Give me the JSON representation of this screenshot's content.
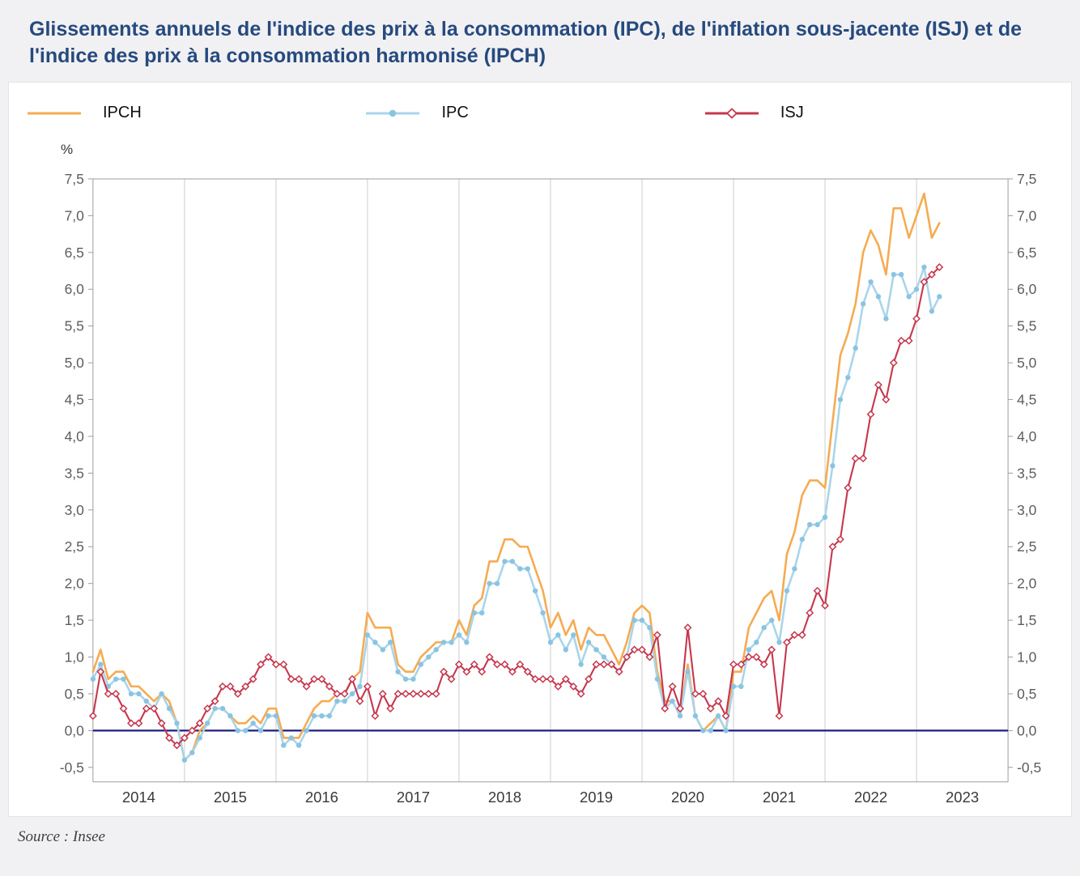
{
  "page": {
    "title": "Glissements annuels de l'indice des prix à la consommation (IPC), de l'inflation sous-jacente (ISJ) et de l'indice des prix à la consommation harmonisé (IPCH)",
    "percent_label": "%",
    "source": "Source : Insee"
  },
  "chart_data": {
    "type": "line",
    "title": "Glissements annuels de l'indice des prix à la consommation (IPC), de l'inflation sous-jacente (ISJ) et de l'indice des prix à la consommation harmonisé (IPCH)",
    "x_start": "2014-01",
    "x_end": "2023-04",
    "x_tick_labels": [
      "2014",
      "2015",
      "2016",
      "2017",
      "2018",
      "2019",
      "2020",
      "2021",
      "2022",
      "2023"
    ],
    "ylabel": "%",
    "ylim": [
      -0.5,
      7.5
    ],
    "y_tick_step": 0.5,
    "grid": "vertical-only",
    "legend_position": "top",
    "zero_line_color": "#1e1e82",
    "series": [
      {
        "name": "IPCH",
        "color": "#f5ab52",
        "marker": "none",
        "values": [
          0.8,
          1.1,
          0.7,
          0.8,
          0.8,
          0.6,
          0.6,
          0.5,
          0.4,
          0.5,
          0.4,
          0.1,
          -0.4,
          -0.3,
          0.0,
          0.1,
          0.3,
          0.3,
          0.2,
          0.1,
          0.1,
          0.2,
          0.1,
          0.3,
          0.3,
          -0.1,
          -0.1,
          -0.1,
          0.1,
          0.3,
          0.4,
          0.4,
          0.5,
          0.5,
          0.7,
          0.8,
          1.6,
          1.4,
          1.4,
          1.4,
          0.9,
          0.8,
          0.8,
          1.0,
          1.1,
          1.2,
          1.2,
          1.2,
          1.5,
          1.3,
          1.7,
          1.8,
          2.3,
          2.3,
          2.6,
          2.6,
          2.5,
          2.5,
          2.2,
          1.9,
          1.4,
          1.6,
          1.3,
          1.5,
          1.1,
          1.4,
          1.3,
          1.3,
          1.1,
          0.9,
          1.2,
          1.6,
          1.7,
          1.6,
          0.8,
          0.4,
          0.4,
          0.2,
          0.9,
          0.2,
          0.0,
          0.1,
          0.2,
          0.0,
          0.8,
          0.8,
          1.4,
          1.6,
          1.8,
          1.9,
          1.5,
          2.4,
          2.7,
          3.2,
          3.4,
          3.4,
          3.3,
          4.2,
          5.1,
          5.4,
          5.8,
          6.5,
          6.8,
          6.6,
          6.2,
          7.1,
          7.1,
          6.7,
          7.0,
          7.3,
          6.7,
          6.9
        ]
      },
      {
        "name": "IPC",
        "color": "#a9d5ea",
        "marker": "circle",
        "marker_color": "#8ac4e2",
        "values": [
          0.7,
          0.9,
          0.6,
          0.7,
          0.7,
          0.5,
          0.5,
          0.4,
          0.3,
          0.5,
          0.3,
          0.1,
          -0.4,
          -0.3,
          -0.1,
          0.1,
          0.3,
          0.3,
          0.2,
          0.0,
          0.0,
          0.1,
          0.0,
          0.2,
          0.2,
          -0.2,
          -0.1,
          -0.2,
          0.0,
          0.2,
          0.2,
          0.2,
          0.4,
          0.4,
          0.5,
          0.6,
          1.3,
          1.2,
          1.1,
          1.2,
          0.8,
          0.7,
          0.7,
          0.9,
          1.0,
          1.1,
          1.2,
          1.2,
          1.3,
          1.2,
          1.6,
          1.6,
          2.0,
          2.0,
          2.3,
          2.3,
          2.2,
          2.2,
          1.9,
          1.6,
          1.2,
          1.3,
          1.1,
          1.3,
          0.9,
          1.2,
          1.1,
          1.0,
          0.9,
          0.8,
          1.0,
          1.5,
          1.5,
          1.4,
          0.7,
          0.3,
          0.4,
          0.2,
          0.8,
          0.2,
          0.0,
          0.0,
          0.2,
          0.0,
          0.6,
          0.6,
          1.1,
          1.2,
          1.4,
          1.5,
          1.2,
          1.9,
          2.2,
          2.6,
          2.8,
          2.8,
          2.9,
          3.6,
          4.5,
          4.8,
          5.2,
          5.8,
          6.1,
          5.9,
          5.6,
          6.2,
          6.2,
          5.9,
          6.0,
          6.3,
          5.7,
          5.9
        ]
      },
      {
        "name": "ISJ",
        "color": "#c6374e",
        "marker": "diamond",
        "marker_color": "#ffffff",
        "values": [
          0.2,
          0.8,
          0.5,
          0.5,
          0.3,
          0.1,
          0.1,
          0.3,
          0.3,
          0.1,
          -0.1,
          -0.2,
          -0.1,
          0.0,
          0.1,
          0.3,
          0.4,
          0.6,
          0.6,
          0.5,
          0.6,
          0.7,
          0.9,
          1.0,
          0.9,
          0.9,
          0.7,
          0.7,
          0.6,
          0.7,
          0.7,
          0.6,
          0.5,
          0.5,
          0.7,
          0.4,
          0.6,
          0.2,
          0.5,
          0.3,
          0.5,
          0.5,
          0.5,
          0.5,
          0.5,
          0.5,
          0.8,
          0.7,
          0.9,
          0.8,
          0.9,
          0.8,
          1.0,
          0.9,
          0.9,
          0.8,
          0.9,
          0.8,
          0.7,
          0.7,
          0.7,
          0.6,
          0.7,
          0.6,
          0.5,
          0.7,
          0.9,
          0.9,
          0.9,
          0.8,
          1.0,
          1.1,
          1.1,
          1.0,
          1.3,
          0.3,
          0.6,
          0.3,
          1.4,
          0.5,
          0.5,
          0.3,
          0.4,
          0.2,
          0.9,
          0.9,
          1.0,
          1.0,
          0.9,
          1.1,
          0.2,
          1.2,
          1.3,
          1.3,
          1.6,
          1.9,
          1.7,
          2.5,
          2.6,
          3.3,
          3.7,
          3.7,
          4.3,
          4.7,
          4.5,
          5.0,
          5.3,
          5.3,
          5.6,
          6.1,
          6.2,
          6.3
        ]
      }
    ]
  }
}
